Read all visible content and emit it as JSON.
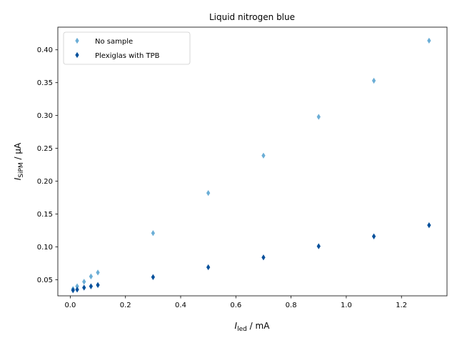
{
  "chart_data": {
    "type": "scatter",
    "title": "Liquid nitrogen blue",
    "xlabel": {
      "main": "I",
      "sub": "led",
      "rest": " / mA"
    },
    "ylabel": {
      "main": "I",
      "sub": "SiPM",
      "rest": " / μA"
    },
    "xlim": [
      -0.045,
      1.365
    ],
    "ylim": [
      0.0255,
      0.4345
    ],
    "xticks": [
      0.0,
      0.2,
      0.4,
      0.6,
      0.8,
      1.0,
      1.2
    ],
    "xtick_labels": [
      "0.0",
      "0.2",
      "0.4",
      "0.6",
      "0.8",
      "1.0",
      "1.2"
    ],
    "yticks": [
      0.05,
      0.1,
      0.15,
      0.2,
      0.25,
      0.3,
      0.35,
      0.4
    ],
    "ytick_labels": [
      "0.05",
      "0.10",
      "0.15",
      "0.20",
      "0.25",
      "0.30",
      "0.35",
      "0.40"
    ],
    "grid": false,
    "legend_position": "top-left",
    "series": [
      {
        "name": "No sample",
        "color": "#6baed6",
        "marker": "thin-diamond",
        "x": [
          0.01,
          0.025,
          0.05,
          0.075,
          0.1,
          0.3,
          0.5,
          0.7,
          0.9,
          1.1,
          1.3
        ],
        "y": [
          0.036,
          0.04,
          0.047,
          0.055,
          0.061,
          0.121,
          0.182,
          0.239,
          0.298,
          0.353,
          0.414
        ]
      },
      {
        "name": "Plexiglas with TPB",
        "color": "#08519c",
        "marker": "thin-diamond",
        "x": [
          0.01,
          0.025,
          0.05,
          0.075,
          0.1,
          0.3,
          0.5,
          0.7,
          0.9,
          1.1,
          1.3
        ],
        "y": [
          0.034,
          0.035,
          0.038,
          0.04,
          0.042,
          0.054,
          0.069,
          0.084,
          0.101,
          0.116,
          0.133
        ]
      }
    ]
  }
}
